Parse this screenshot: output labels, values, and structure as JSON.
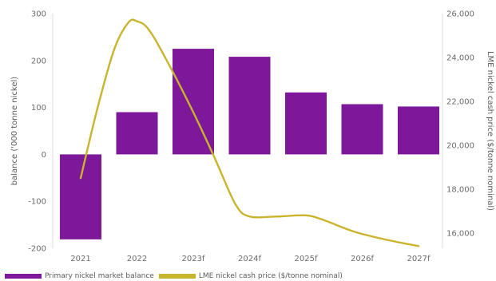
{
  "chart_data": {
    "type": "bar",
    "categories": [
      "2021",
      "2022",
      "2023f",
      "2024f",
      "2025f",
      "2026f",
      "2027f"
    ],
    "series": [
      {
        "name": "Primary nickel market balance",
        "type": "bar",
        "axis": "left",
        "color": "#7d189b",
        "values": [
          -181,
          90,
          225,
          208,
          132,
          107,
          102
        ]
      },
      {
        "name": "LME nickel cash price ($/tonne nominal)",
        "type": "line",
        "axis": "right",
        "color": "#c9b42c",
        "points": [
          {
            "x": 0.0,
            "y": 18500
          },
          {
            "x": 0.3,
            "y": 21700
          },
          {
            "x": 0.6,
            "y": 24400
          },
          {
            "x": 0.85,
            "y": 25600
          },
          {
            "x": 1.0,
            "y": 25650
          },
          {
            "x": 1.2,
            "y": 25300
          },
          {
            "x": 1.5,
            "y": 24000
          },
          {
            "x": 2.0,
            "y": 21500
          },
          {
            "x": 2.4,
            "y": 19300
          },
          {
            "x": 2.75,
            "y": 17300
          },
          {
            "x": 3.0,
            "y": 16750
          },
          {
            "x": 3.5,
            "y": 16750
          },
          {
            "x": 4.0,
            "y": 16800
          },
          {
            "x": 4.3,
            "y": 16600
          },
          {
            "x": 4.7,
            "y": 16200
          },
          {
            "x": 5.0,
            "y": 15950
          },
          {
            "x": 5.5,
            "y": 15650
          },
          {
            "x": 6.0,
            "y": 15400
          }
        ]
      }
    ],
    "ylabel": "balance ('000 tonne nickel)",
    "y2label": "LME nickel cash price ($/tonne nominal)",
    "ylim": [
      -200,
      300
    ],
    "y2lim": [
      15300,
      26000
    ],
    "yticks": [
      "300",
      "200",
      "100",
      "0",
      "-100",
      "-200"
    ],
    "y2ticks": [
      "26,000",
      "24,000",
      "22,000",
      "20,000",
      "18,000",
      "16,000"
    ],
    "grid": false,
    "legend_position": "bottom-left"
  }
}
